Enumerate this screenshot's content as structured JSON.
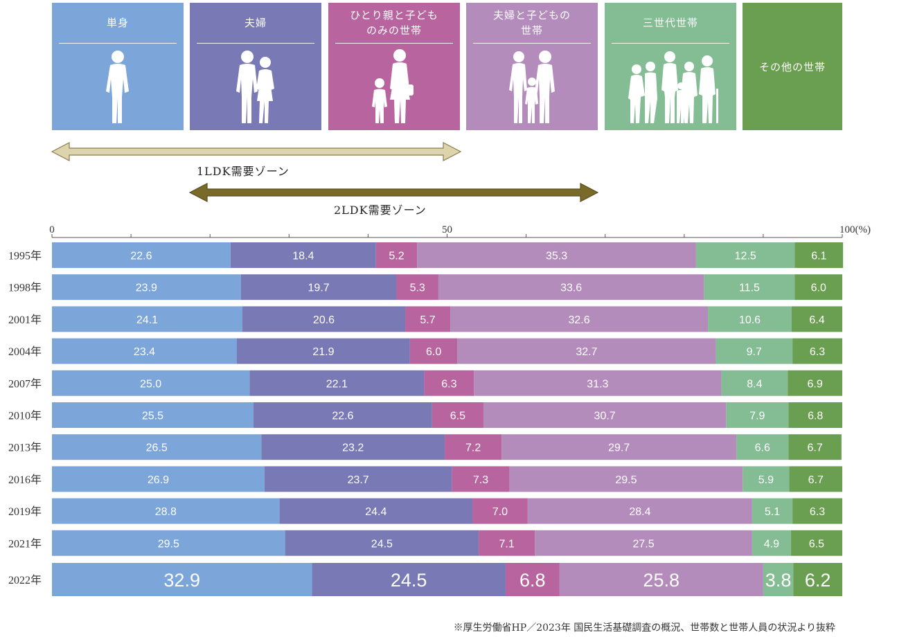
{
  "categories": [
    {
      "label": "単身",
      "color": "#7ca5da",
      "icon": "single-person-icon"
    },
    {
      "label": "夫婦",
      "color": "#7979b6",
      "icon": "couple-icon"
    },
    {
      "label": "ひとり親と子どものみの世帯",
      "color": "#b8659f",
      "icon": "single-parent-icon"
    },
    {
      "label": "夫婦と子どもの世帯",
      "color": "#b38cbc",
      "icon": "family-icon"
    },
    {
      "label": "三世代世帯",
      "color": "#84bc94",
      "icon": "three-generation-icon"
    },
    {
      "label": "その他の世帯",
      "color": "#6a9e50",
      "icon": ""
    }
  ],
  "legend_labels": {
    "single_parent_line1": "ひとり親と子ども",
    "single_parent_line2": "のみの世帯",
    "family_line1": "夫婦と子どもの",
    "family_line2": "世帯"
  },
  "zones": {
    "zone1": {
      "label": "1LDK需要ゾーン",
      "color": "#ddd3ac"
    },
    "zone2": {
      "label": "2LDK需要ゾーン",
      "color": "#7a6a2a"
    }
  },
  "chart_data": {
    "type": "bar",
    "orientation": "horizontal",
    "stacked": true,
    "xlim": [
      0,
      100
    ],
    "x_tick_labels": [
      "0",
      "50",
      "100(%)"
    ],
    "categories": [
      "1995年",
      "1998年",
      "2001年",
      "2004年",
      "2007年",
      "2010年",
      "2013年",
      "2016年",
      "2019年",
      "2021年",
      "2022年"
    ],
    "series": [
      {
        "name": "単身",
        "color": "#7ca5da",
        "values": [
          22.6,
          23.9,
          24.1,
          23.4,
          25.0,
          25.5,
          26.5,
          26.9,
          28.8,
          29.5,
          32.9
        ]
      },
      {
        "name": "夫婦",
        "color": "#7979b6",
        "values": [
          18.4,
          19.7,
          20.6,
          21.9,
          22.1,
          22.6,
          23.2,
          23.7,
          24.4,
          24.5,
          24.5
        ]
      },
      {
        "name": "ひとり親と子どものみの世帯",
        "color": "#b8659f",
        "values": [
          5.2,
          5.3,
          5.7,
          6.0,
          6.3,
          6.5,
          7.2,
          7.3,
          7.0,
          7.1,
          6.8
        ]
      },
      {
        "name": "夫婦と子どもの世帯",
        "color": "#b38cbc",
        "values": [
          35.3,
          33.6,
          32.6,
          32.7,
          31.3,
          30.7,
          29.7,
          29.5,
          28.4,
          27.5,
          25.8
        ]
      },
      {
        "name": "三世代世帯",
        "color": "#84bc94",
        "values": [
          12.5,
          11.5,
          10.6,
          9.7,
          8.4,
          7.9,
          6.6,
          5.9,
          5.1,
          4.9,
          3.8
        ]
      },
      {
        "name": "その他の世帯",
        "color": "#6a9e50",
        "values": [
          6.1,
          6.0,
          6.4,
          6.3,
          6.9,
          6.8,
          6.7,
          6.7,
          6.3,
          6.5,
          6.2
        ]
      }
    ],
    "value_labels": [
      [
        "22.6",
        "18.4",
        "5.2",
        "35.3",
        "12.5",
        "6.1"
      ],
      [
        "23.9",
        "19.7",
        "5.3",
        "33.6",
        "11.5",
        "6.0"
      ],
      [
        "24.1",
        "20.6",
        "5.7",
        "32.6",
        "10.6",
        "6.4"
      ],
      [
        "23.4",
        "21.9",
        "6.0",
        "32.7",
        "9.7",
        "6.3"
      ],
      [
        "25.0",
        "22.1",
        "6.3",
        "31.3",
        "8.4",
        "6.9"
      ],
      [
        "25.5",
        "22.6",
        "6.5",
        "30.7",
        "7.9",
        "6.8"
      ],
      [
        "26.5",
        "23.2",
        "7.2",
        "29.7",
        "6.6",
        "6.7"
      ],
      [
        "26.9",
        "23.7",
        "7.3",
        "29.5",
        "5.9",
        "6.7"
      ],
      [
        "28.8",
        "24.4",
        "7.0",
        "28.4",
        "5.1",
        "6.3"
      ],
      [
        "29.5",
        "24.5",
        "7.1",
        "27.5",
        "4.9",
        "6.5"
      ],
      [
        "32.9",
        "24.5",
        "6.8",
        "25.8",
        "3.8",
        "6.2"
      ]
    ],
    "highlight_category": "2022年"
  },
  "source_note": "※厚生労働省HP／2023年 国民生活基礎調査の概況、世帯数と世帯人員の状況より抜粋"
}
